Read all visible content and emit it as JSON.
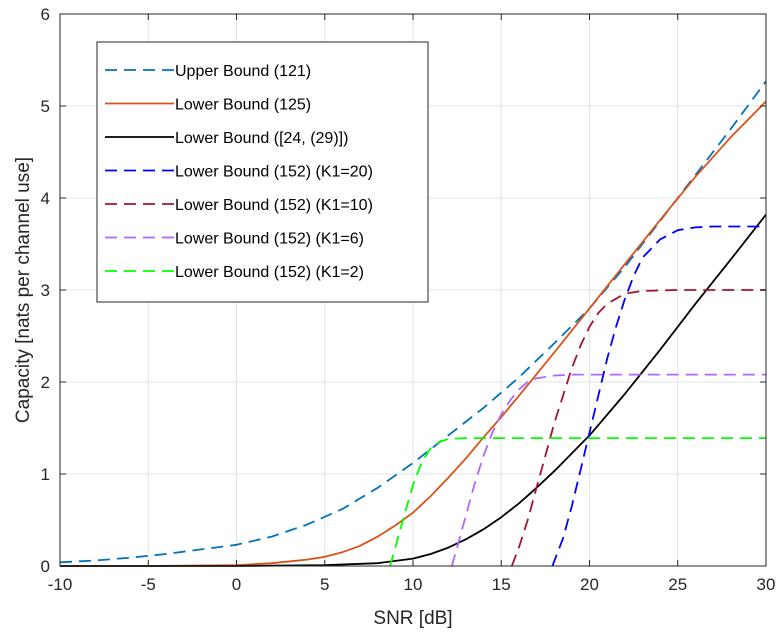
{
  "chart_data": {
    "type": "line",
    "title": "",
    "xlabel": "SNR [dB]",
    "ylabel": "Capacity [nats per channel use]",
    "xlim": [
      -10,
      30
    ],
    "ylim": [
      0,
      6
    ],
    "xticks": [
      -10,
      -5,
      0,
      5,
      10,
      15,
      20,
      25,
      30
    ],
    "yticks": [
      0,
      1,
      2,
      3,
      4,
      5,
      6
    ],
    "xtick_labels": [
      "-10",
      "-5",
      "0",
      "5",
      "10",
      "15",
      "20",
      "25",
      "30"
    ],
    "ytick_labels": [
      "0",
      "1",
      "2",
      "3",
      "4",
      "5",
      "6"
    ],
    "grid": true,
    "legend_position": "top-left",
    "series": [
      {
        "name": "Upper Bound (121)",
        "color": "#0072BD",
        "dash": "dashed",
        "x": [
          -10,
          -8,
          -6,
          -4,
          -2,
          0,
          2,
          4,
          6,
          8,
          10,
          12,
          14,
          16,
          18,
          20,
          22,
          24,
          26,
          28,
          30
        ],
        "y": [
          0.04,
          0.06,
          0.09,
          0.13,
          0.18,
          0.23,
          0.32,
          0.45,
          0.62,
          0.85,
          1.12,
          1.42,
          1.72,
          2.05,
          2.42,
          2.8,
          3.25,
          3.75,
          4.25,
          4.75,
          5.27
        ]
      },
      {
        "name": "Lower Bound (125)",
        "color": "#D95319",
        "dash": "solid",
        "x": [
          -10,
          -5,
          0,
          2,
          4,
          5,
          6,
          7,
          8,
          9,
          10,
          11,
          12,
          13,
          14,
          15,
          16,
          18,
          20,
          22,
          24,
          26,
          28,
          30
        ],
        "y": [
          0,
          0,
          0.01,
          0.03,
          0.07,
          0.1,
          0.15,
          0.22,
          0.32,
          0.44,
          0.58,
          0.76,
          0.96,
          1.17,
          1.4,
          1.62,
          1.85,
          2.32,
          2.8,
          3.28,
          3.76,
          4.23,
          4.66,
          5.05
        ]
      },
      {
        "name": "Lower Bound ([24, (29)])",
        "color": "#000000",
        "dash": "solid",
        "x": [
          -10,
          -5,
          0,
          5,
          8,
          10,
          11,
          12,
          13,
          14,
          15,
          16,
          17,
          18,
          20,
          22,
          24,
          26,
          28,
          30
        ],
        "y": [
          0,
          0,
          0,
          0.01,
          0.03,
          0.08,
          0.13,
          0.2,
          0.29,
          0.4,
          0.53,
          0.68,
          0.85,
          1.03,
          1.42,
          1.87,
          2.35,
          2.85,
          3.33,
          3.82
        ]
      },
      {
        "name": "Lower Bound (152) (K1=20)",
        "color": "#0000FF",
        "dash": "dashed",
        "x": [
          17.9,
          18.5,
          19,
          19.5,
          20,
          20.5,
          21,
          21.5,
          22,
          22.5,
          23,
          24,
          25,
          26,
          27,
          28,
          30
        ],
        "y": [
          0,
          0.3,
          0.65,
          1.05,
          1.45,
          1.85,
          2.25,
          2.6,
          2.9,
          3.15,
          3.35,
          3.55,
          3.65,
          3.68,
          3.69,
          3.69,
          3.69
        ]
      },
      {
        "name": "Lower Bound (152) (K1=10)",
        "color": "#A2142F",
        "dash": "dashed",
        "x": [
          15.6,
          16,
          16.5,
          17,
          17.5,
          18,
          18.5,
          19,
          19.5,
          20,
          20.5,
          21,
          22,
          23,
          25,
          30
        ],
        "y": [
          0,
          0.2,
          0.5,
          0.85,
          1.2,
          1.55,
          1.85,
          2.15,
          2.4,
          2.6,
          2.75,
          2.85,
          2.96,
          2.99,
          3.0,
          3.0
        ]
      },
      {
        "name": "Lower Bound (152) (K1=6)",
        "color": "#B266FF",
        "dash": "dashed",
        "x": [
          12.2,
          12.5,
          13,
          13.5,
          14,
          14.5,
          15,
          15.5,
          16,
          16.5,
          17,
          18,
          19,
          20,
          30
        ],
        "y": [
          0,
          0.2,
          0.55,
          0.9,
          1.2,
          1.45,
          1.65,
          1.8,
          1.92,
          2.0,
          2.04,
          2.07,
          2.08,
          2.08,
          2.08
        ]
      },
      {
        "name": "Lower Bound (152) (K1=2)",
        "color": "#00FF00",
        "dash": "dashed",
        "x": [
          8.7,
          9,
          9.5,
          10,
          10.5,
          11,
          11.5,
          12,
          13,
          14,
          15,
          30
        ],
        "y": [
          0,
          0.2,
          0.55,
          0.88,
          1.13,
          1.28,
          1.35,
          1.38,
          1.39,
          1.39,
          1.39,
          1.39
        ]
      }
    ]
  }
}
